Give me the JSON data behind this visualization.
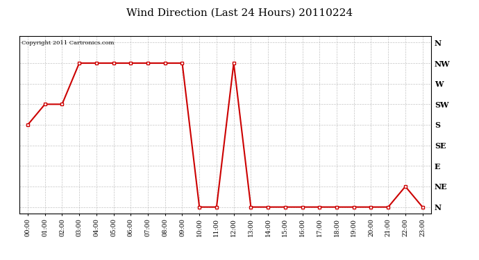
{
  "title": "Wind Direction (Last 24 Hours) 20110224",
  "copyright_text": "Copyright 2011 Cartronics.com",
  "ytick_labels": [
    "N",
    "NE",
    "E",
    "SE",
    "S",
    "SW",
    "W",
    "NW",
    "N"
  ],
  "ytick_values": [
    0,
    1,
    2,
    3,
    4,
    5,
    6,
    7,
    8
  ],
  "xtick_labels": [
    "00:00",
    "01:00",
    "02:00",
    "03:00",
    "04:00",
    "05:00",
    "06:00",
    "07:00",
    "08:00",
    "09:00",
    "10:00",
    "11:00",
    "12:00",
    "13:00",
    "14:00",
    "15:00",
    "16:00",
    "17:00",
    "18:00",
    "19:00",
    "20:00",
    "21:00",
    "22:00",
    "23:00"
  ],
  "hours": [
    0,
    1,
    2,
    3,
    4,
    5,
    6,
    7,
    8,
    9,
    10,
    11,
    12,
    13,
    14,
    15,
    16,
    17,
    18,
    19,
    20,
    21,
    22,
    23
  ],
  "wind_values": [
    4,
    5,
    5,
    7,
    7,
    7,
    7,
    7,
    7,
    7,
    0,
    0,
    7,
    0,
    0,
    0,
    0,
    0,
    0,
    0,
    0,
    0,
    1,
    0
  ],
  "line_color": "#cc0000",
  "marker": "s",
  "marker_size": 2.5,
  "background_color": "#ffffff",
  "grid_color": "#aaaaaa",
  "title_fontsize": 11,
  "ylim": [
    -0.3,
    8.3
  ],
  "xlim": [
    -0.5,
    23.5
  ]
}
